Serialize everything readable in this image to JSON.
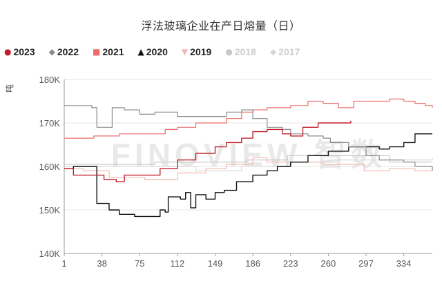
{
  "chart_data": {
    "type": "line",
    "title": "浮法玻璃企业在产日熔量（日）",
    "ylabel": "吨",
    "watermark": "FINOVIEW 智数",
    "x_ticks": [
      "1",
      "38",
      "75",
      "112",
      "149",
      "186",
      "223",
      "260",
      "297",
      "334"
    ],
    "x_tick_values": [
      1,
      38,
      75,
      112,
      149,
      186,
      223,
      260,
      297,
      334
    ],
    "xlim": [
      1,
      362
    ],
    "y_ticks": [
      "140K",
      "150K",
      "160K",
      "170K",
      "180K"
    ],
    "y_tick_values": [
      140000,
      150000,
      160000,
      170000,
      180000
    ],
    "ylim": [
      140000,
      180000
    ],
    "legend_position": "top",
    "series": [
      {
        "name": "2017",
        "color": "#d8d8d8",
        "marker": "◆",
        "legend_text_color": "#cccccc",
        "points": [
          [
            1,
            160000
          ],
          [
            80,
            160000
          ],
          [
            130,
            159000
          ],
          [
            175,
            160000
          ],
          [
            220,
            161000
          ],
          [
            262,
            161500
          ],
          [
            300,
            161500
          ],
          [
            362,
            162000
          ]
        ]
      },
      {
        "name": "2018",
        "color": "#c8c8c8",
        "marker": "●",
        "legend_text_color": "#cccccc",
        "points": [
          [
            1,
            160500
          ],
          [
            90,
            161000
          ],
          [
            140,
            161000
          ],
          [
            180,
            161500
          ],
          [
            220,
            162500
          ],
          [
            270,
            162500
          ],
          [
            320,
            161000
          ],
          [
            362,
            161000
          ]
        ]
      },
      {
        "name": "2019",
        "color": "#f3b8b0",
        "marker": "▼",
        "legend_text_color": "#222222",
        "points": [
          [
            1,
            159500
          ],
          [
            20,
            159000
          ],
          [
            45,
            157500
          ],
          [
            80,
            157000
          ],
          [
            112,
            158500
          ],
          [
            140,
            159500
          ],
          [
            160,
            160500
          ],
          [
            186,
            162000
          ],
          [
            200,
            161000
          ],
          [
            223,
            161000
          ],
          [
            255,
            160500
          ],
          [
            275,
            160500
          ],
          [
            295,
            159000
          ],
          [
            320,
            159500
          ],
          [
            345,
            159000
          ],
          [
            362,
            159500
          ]
        ]
      },
      {
        "name": "2020",
        "color": "#111111",
        "marker": "▲",
        "legend_text_color": "#222222",
        "points": [
          [
            1,
            159500
          ],
          [
            10,
            160000
          ],
          [
            28,
            160000
          ],
          [
            33,
            151500
          ],
          [
            45,
            150000
          ],
          [
            55,
            149000
          ],
          [
            70,
            148500
          ],
          [
            88,
            148500
          ],
          [
            95,
            150000
          ],
          [
            100,
            149500
          ],
          [
            103,
            153000
          ],
          [
            115,
            152500
          ],
          [
            120,
            154000
          ],
          [
            125,
            150500
          ],
          [
            130,
            153500
          ],
          [
            140,
            152500
          ],
          [
            149,
            154000
          ],
          [
            158,
            154500
          ],
          [
            170,
            156500
          ],
          [
            186,
            158000
          ],
          [
            200,
            159000
          ],
          [
            210,
            160000
          ],
          [
            223,
            161000
          ],
          [
            240,
            162500
          ],
          [
            260,
            163500
          ],
          [
            280,
            164500
          ],
          [
            297,
            164500
          ],
          [
            310,
            164000
          ],
          [
            320,
            164500
          ],
          [
            334,
            165500
          ],
          [
            345,
            167500
          ],
          [
            362,
            167500
          ]
        ]
      },
      {
        "name": "2021",
        "color": "#ee6b6b",
        "marker": "■",
        "legend_text_color": "#222222",
        "points": [
          [
            1,
            166500
          ],
          [
            15,
            166500
          ],
          [
            30,
            167000
          ],
          [
            40,
            167000
          ],
          [
            55,
            167500
          ],
          [
            75,
            167500
          ],
          [
            100,
            168500
          ],
          [
            112,
            169000
          ],
          [
            130,
            170000
          ],
          [
            149,
            170000
          ],
          [
            160,
            171000
          ],
          [
            175,
            172500
          ],
          [
            186,
            173000
          ],
          [
            200,
            173500
          ],
          [
            223,
            174000
          ],
          [
            240,
            175000
          ],
          [
            255,
            174500
          ],
          [
            262,
            174500
          ],
          [
            270,
            173500
          ],
          [
            285,
            175000
          ],
          [
            297,
            175000
          ],
          [
            310,
            175000
          ],
          [
            320,
            175500
          ],
          [
            334,
            175000
          ],
          [
            345,
            174500
          ],
          [
            355,
            174000
          ],
          [
            362,
            173500
          ]
        ]
      },
      {
        "name": "2022",
        "color": "#8a8a8a",
        "marker": "◆",
        "legend_text_color": "#222222",
        "points": [
          [
            1,
            174000
          ],
          [
            15,
            174000
          ],
          [
            28,
            173500
          ],
          [
            33,
            169000
          ],
          [
            40,
            169000
          ],
          [
            48,
            173500
          ],
          [
            60,
            173000
          ],
          [
            75,
            172000
          ],
          [
            90,
            172500
          ],
          [
            112,
            171500
          ],
          [
            130,
            171500
          ],
          [
            149,
            171500
          ],
          [
            160,
            172500
          ],
          [
            175,
            173000
          ],
          [
            186,
            171000
          ],
          [
            200,
            169000
          ],
          [
            215,
            168500
          ],
          [
            223,
            167500
          ],
          [
            240,
            167000
          ],
          [
            255,
            166500
          ],
          [
            262,
            165500
          ],
          [
            280,
            164500
          ],
          [
            297,
            162500
          ],
          [
            310,
            161500
          ],
          [
            334,
            161000
          ],
          [
            345,
            160000
          ],
          [
            362,
            159000
          ]
        ]
      },
      {
        "name": "2023",
        "color": "#c0212e",
        "marker": "●",
        "legend_text_color": "#222222",
        "points": [
          [
            1,
            159500
          ],
          [
            10,
            158000
          ],
          [
            28,
            158000
          ],
          [
            40,
            157000
          ],
          [
            52,
            156500
          ],
          [
            60,
            158000
          ],
          [
            75,
            158000
          ],
          [
            95,
            159500
          ],
          [
            112,
            161500
          ],
          [
            130,
            163000
          ],
          [
            149,
            164500
          ],
          [
            160,
            165500
          ],
          [
            175,
            166500
          ],
          [
            186,
            168000
          ],
          [
            200,
            168500
          ],
          [
            215,
            167500
          ],
          [
            223,
            167000
          ],
          [
            235,
            169000
          ],
          [
            250,
            170000
          ],
          [
            262,
            170000
          ],
          [
            282,
            170500
          ]
        ]
      }
    ]
  }
}
